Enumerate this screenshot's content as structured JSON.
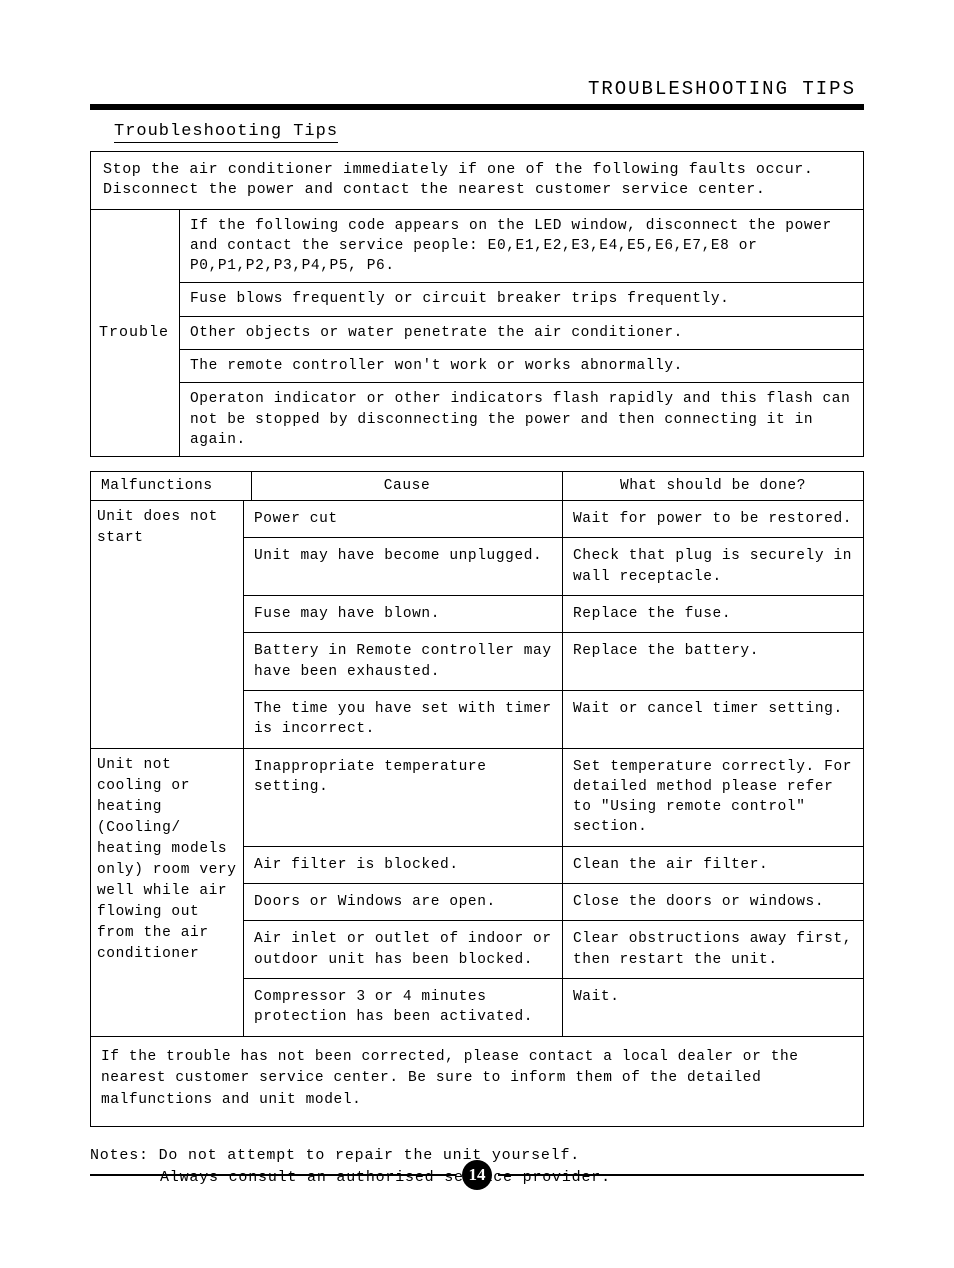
{
  "header": {
    "running_title": "TROUBLESHOOTING TIPS",
    "section_title": "Troubleshooting Tips"
  },
  "trouble_box": {
    "intro": "Stop the air conditioner immediately if one of the following faults occur. Disconnect the power and contact the nearest customer service center.",
    "left_label": "Trouble",
    "rows": [
      "If the following code appears on the LED window, disconnect the power and contact the service people: E0,E1,E2,E3,E4,E5,E6,E7,E8 or P0,P1,P2,P3,P4,P5, P6.",
      "Fuse blows frequently or circuit breaker trips frequently.",
      "Other objects or water penetrate the air conditioner.",
      "The remote controller won't work or works abnormally.",
      "Operaton indicator or other indicators flash rapidly and this flash can not be stopped by disconnecting the power and then connecting it in again."
    ]
  },
  "malf_table": {
    "headers": {
      "c1": "Malfunctions",
      "c2": "Cause",
      "c3": "What should be done?"
    },
    "groups": [
      {
        "label": "Unit does not start",
        "rows": [
          {
            "cause": "Power cut",
            "action": "Wait for power to be restored."
          },
          {
            "cause": "Unit may have become unplugged.",
            "action": "Check that plug is securely in wall receptacle."
          },
          {
            "cause": "Fuse may have blown.",
            "action": "Replace the fuse."
          },
          {
            "cause": "Battery in Remote controller may have been exhausted.",
            "action": "Replace the battery."
          },
          {
            "cause": "The time you have set with timer is incorrect.",
            "action": "Wait or cancel timer setting."
          }
        ]
      },
      {
        "label": "Unit not cooling or heating (Cooling/ heating models only) room very well while air flowing out from the air conditioner",
        "rows": [
          {
            "cause": "Inappropriate temperature setting.",
            "action": "Set temperature correctly. For detailed method please refer to \"Using remote control\" section."
          },
          {
            "cause": "Air filter is blocked.",
            "action": "Clean the air filter."
          },
          {
            "cause": "Doors or Windows are open.",
            "action": "Close the doors or windows."
          },
          {
            "cause": "Air inlet or outlet of indoor or outdoor unit has been blocked.",
            "action": "Clear obstructions away first, then restart the unit."
          },
          {
            "cause": "Compressor 3 or 4 minutes protection has been activated.",
            "action": "Wait."
          }
        ]
      }
    ],
    "footer": "If the trouble has not been corrected, please contact a local dealer or the nearest customer service center. Be sure to inform them of the detailed malfunctions and unit model."
  },
  "notes": {
    "line1": "Notes: Do not attempt to repair the unit yourself.",
    "line2": "Always consult an authorised service provider."
  },
  "page_number": "14"
}
